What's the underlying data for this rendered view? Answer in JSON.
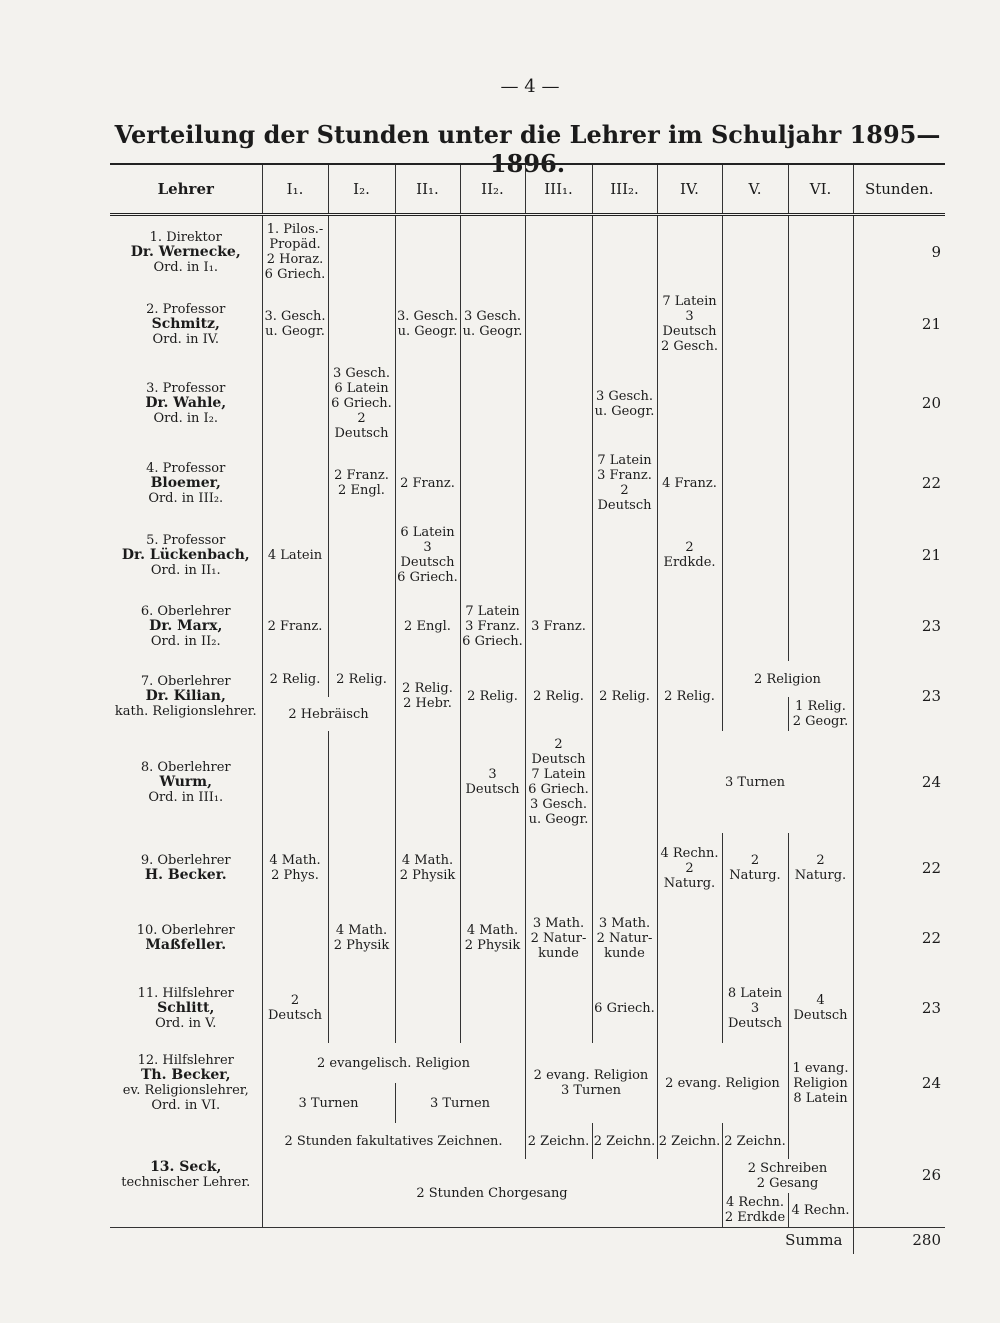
{
  "page_number": "— 4 —",
  "title": "Verteilung der Stunden unter die Lehrer im Schuljahr 1895—1896.",
  "header": [
    "Lehrer",
    "I₁.",
    "I₂.",
    "II₁.",
    "II₂.",
    "III₁.",
    "III₂.",
    "IV.",
    "V.",
    "VI.",
    "Stunden."
  ],
  "rows": [
    {
      "teacher": [
        "1. Direktor",
        "Dr. Wernecke,",
        "Ord. in I₁."
      ],
      "cells": [
        [
          "1. Pilos.-Propäd.",
          "2 Horaz.",
          "6 Griech."
        ]
      ],
      "hours": 9
    },
    {
      "teacher": [
        "2. Professor",
        "Schmitz,",
        "Ord. in IV."
      ],
      "cells": [
        [
          "3. Gesch.",
          "u. Geogr."
        ],
        [
          "3. Gesch.",
          "u. Geogr."
        ],
        [
          "3 Gesch.",
          "u. Geogr."
        ],
        [
          "7 Latein",
          "3 Deutsch",
          "2 Gesch."
        ]
      ],
      "hours": 21
    },
    {
      "teacher": [
        "3. Professor",
        "Dr. Wahle,",
        "Ord. in I₂."
      ],
      "cells": [
        [
          "3 Gesch.",
          "6 Latein",
          "6 Griech.",
          "2 Deutsch"
        ],
        [
          "3 Gesch.",
          "u. Geogr."
        ]
      ],
      "hours": 20
    },
    {
      "teacher": [
        "4. Professor",
        "Bloemer,",
        "Ord. in III₂."
      ],
      "cells": [
        [
          "2 Franz.",
          "2 Engl."
        ],
        [
          "2 Franz."
        ],
        [
          "7 Latein",
          "3 Franz.",
          "2 Deutsch"
        ],
        [
          "4 Franz."
        ]
      ],
      "hours": 22
    },
    {
      "teacher": [
        "5. Professor",
        "Dr. Lückenbach,",
        "Ord. in II₁."
      ],
      "cells": [
        [
          "4 Latein"
        ],
        [
          "6 Latein",
          "3 Deutsch",
          "6 Griech."
        ],
        [
          "2 Erdkde."
        ]
      ],
      "hours": 21
    },
    {
      "teacher": [
        "6. Oberlehrer",
        "Dr. Marx,",
        "Ord. in II₂."
      ],
      "cells": [
        [
          "2 Franz."
        ],
        [
          "2 Engl."
        ],
        [
          "7 Latein",
          "3 Franz.",
          "6 Griech."
        ],
        [
          "3 Franz."
        ]
      ],
      "hours": 23
    },
    {
      "teacher": [
        "7. Oberlehrer",
        "Dr. Kilian,",
        "kath. Religionslehrer."
      ],
      "cells": [
        [
          "2 Relig."
        ],
        [
          "2 Relig."
        ],
        [
          "2 Relig.",
          "2 Hebr."
        ],
        [
          "2 Relig."
        ],
        [
          "2 Relig."
        ],
        [
          "2 Relig."
        ],
        [
          "2 Relig."
        ],
        [
          "2 Religion"
        ],
        [
          "2 Hebräisch"
        ],
        [
          "1 Relig.",
          "2 Geogr."
        ]
      ],
      "hours": 23
    },
    {
      "teacher": [
        "8. Oberlehrer",
        "Wurm,",
        "Ord. in III₁."
      ],
      "cells": [
        [
          "3 Deutsch"
        ],
        [
          "2 Deutsch",
          "7 Latein",
          "6 Griech.",
          "3 Gesch.",
          "u. Geogr."
        ],
        [
          "3 Turnen"
        ]
      ],
      "hours": 24
    },
    {
      "teacher": [
        "9. Oberlehrer",
        "H. Becker."
      ],
      "cells": [
        [
          "4 Math.",
          "2 Phys."
        ],
        [
          "4 Math.",
          "2 Physik"
        ],
        [
          "4 Rechn.",
          "2 Naturg."
        ],
        [
          "2 Naturg."
        ],
        [
          "2 Naturg."
        ]
      ],
      "hours": 22
    },
    {
      "teacher": [
        "10. Oberlehrer",
        "Maßfeller."
      ],
      "cells": [
        [
          "4 Math.",
          "2 Physik"
        ],
        [
          "4 Math.",
          "2 Physik"
        ],
        [
          "3 Math.",
          "2 Natur-",
          "kunde"
        ],
        [
          "3 Math.",
          "2 Natur-",
          "kunde"
        ]
      ],
      "hours": 22
    },
    {
      "teacher": [
        "11. Hilfslehrer",
        "Schlitt,",
        "Ord. in V."
      ],
      "cells": [
        [
          "2 Deutsch"
        ],
        [
          "6 Griech."
        ],
        [
          "8 Latein",
          "3 Deutsch"
        ],
        [
          "4 Deutsch"
        ]
      ],
      "hours": 23
    },
    {
      "teacher": [
        "12. Hilfslehrer",
        "Th. Becker,",
        "ev. Religionslehrer,",
        "Ord. in VI."
      ],
      "cells": [
        [
          "2 evangelisch. Religion"
        ],
        [
          "2 evang. Religion",
          "3 Turnen"
        ],
        [
          "2 evang. Religion"
        ],
        [
          "1 evang.",
          "Religion",
          "8 Latein"
        ],
        [
          "3 Turnen"
        ],
        [
          "3 Turnen"
        ]
      ],
      "hours": 24
    },
    {
      "teacher": [
        "13. Seck,",
        "technischer Lehrer."
      ],
      "cells": [
        [
          "2 Stunden fakultatives Zeichnen."
        ],
        [
          "2 Zeichn."
        ],
        [
          "2 Zeichn."
        ],
        [
          "2 Zeichn."
        ],
        [
          "2 Zeichn."
        ],
        [
          "2 Stunden Chorgesang"
        ],
        [
          "2 Schreiben",
          "2 Gesang"
        ],
        [
          "4 Rechn.",
          "2 Erdkde"
        ],
        [
          "4 Rechn."
        ]
      ],
      "hours": 26
    }
  ],
  "total": {
    "label": "Summa",
    "value": 280
  }
}
